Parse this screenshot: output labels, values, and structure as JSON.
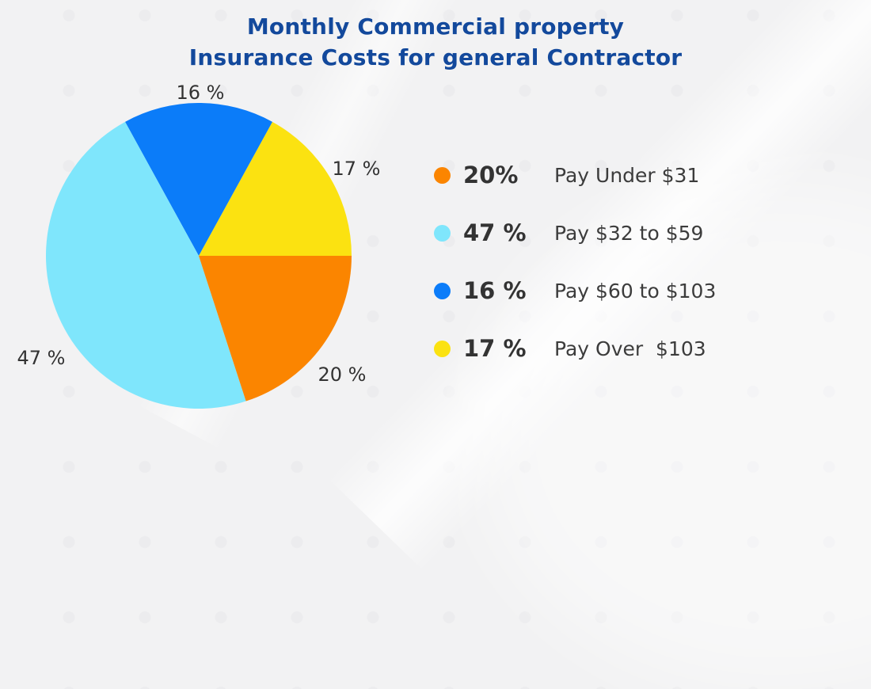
{
  "title": {
    "line1": "Monthly Commercial property",
    "line2": "Insurance Costs for general Contractor"
  },
  "chart_data": {
    "type": "pie",
    "title": "Monthly Commercial property Insurance Costs for general Contractor",
    "units": "%",
    "start_angle_deg": 0,
    "direction": "counterclockwise",
    "legend_position": "right",
    "slices": [
      {
        "name": "Pay Over $103",
        "value": 17,
        "display": "17 %",
        "color": "#FBE211"
      },
      {
        "name": "Pay $60 to $103",
        "value": 16,
        "display": "16 %",
        "color": "#0B7CF9"
      },
      {
        "name": "Pay $32 to $59",
        "value": 47,
        "display": "47 %",
        "color": "#7FE6FC"
      },
      {
        "name": "Pay Under $31",
        "value": 20,
        "display": "20 %",
        "color": "#FB8500"
      }
    ],
    "legend": [
      {
        "pct": "20%",
        "label": "Pay Under $31",
        "color": "#FB8500"
      },
      {
        "pct": "47 %",
        "label": "Pay $32 to $59",
        "color": "#7FE6FC"
      },
      {
        "pct": "16 %",
        "label": "Pay $60 to $103",
        "color": "#0B7CF9"
      },
      {
        "pct": "17 %",
        "label": "Pay Over  $103",
        "color": "#FBE211"
      }
    ]
  },
  "colors": {
    "background": "#F2F2F3",
    "title_text": "#13499C",
    "body_text": "#333333"
  }
}
